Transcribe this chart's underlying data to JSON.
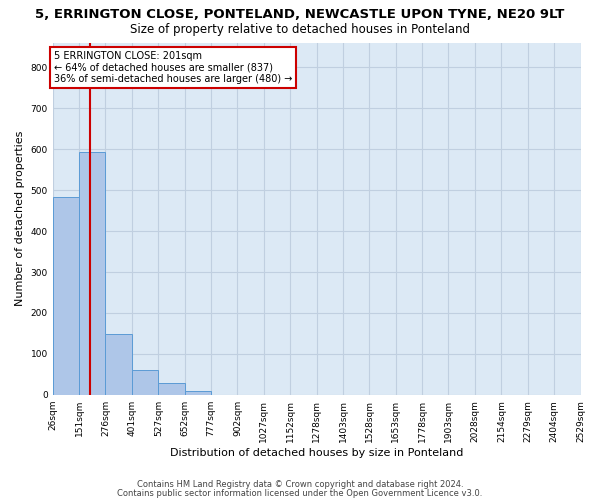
{
  "title1": "5, ERRINGTON CLOSE, PONTELAND, NEWCASTLE UPON TYNE, NE20 9LT",
  "title2": "Size of property relative to detached houses in Ponteland",
  "xlabel": "Distribution of detached houses by size in Ponteland",
  "ylabel": "Number of detached properties",
  "bar_edges": [
    26,
    151,
    276,
    401,
    527,
    652,
    777,
    902,
    1027,
    1152,
    1278,
    1403,
    1528,
    1653,
    1778,
    1903,
    2028,
    2154,
    2279,
    2404,
    2529
  ],
  "bar_heights": [
    484,
    592,
    148,
    62,
    29,
    10,
    0,
    0,
    0,
    0,
    0,
    0,
    0,
    0,
    0,
    0,
    0,
    0,
    0,
    0
  ],
  "bar_color": "#aec6e8",
  "bar_edgecolor": "#5b9bd5",
  "property_line_x": 201,
  "property_line_color": "#cc0000",
  "annotation_text": "5 ERRINGTON CLOSE: 201sqm\n← 64% of detached houses are smaller (837)\n36% of semi-detached houses are larger (480) →",
  "annotation_box_edgecolor": "#cc0000",
  "annotation_box_facecolor": "white",
  "ylim": [
    0,
    860
  ],
  "yticks": [
    0,
    100,
    200,
    300,
    400,
    500,
    600,
    700,
    800
  ],
  "grid_color": "#c0cfe0",
  "bg_color": "#dce9f5",
  "footer1": "Contains HM Land Registry data © Crown copyright and database right 2024.",
  "footer2": "Contains public sector information licensed under the Open Government Licence v3.0.",
  "title1_fontsize": 9.5,
  "title2_fontsize": 8.5,
  "xlabel_fontsize": 8,
  "ylabel_fontsize": 8,
  "tick_fontsize": 6.5,
  "annotation_fontsize": 7,
  "footer_fontsize": 6
}
